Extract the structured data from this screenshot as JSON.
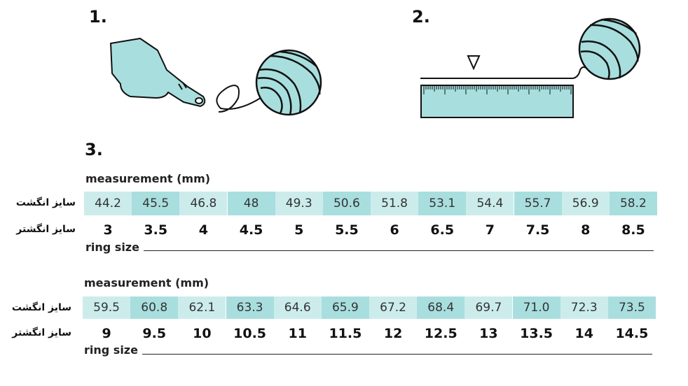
{
  "steps": [
    "1.",
    "2.",
    "3."
  ],
  "tables": [
    {
      "measurement_label": "measurement (mm)",
      "finger_label": "سایز انگشت",
      "ring_label": "سایز انگشتر",
      "measurements": [
        "44.2",
        "45.5",
        "46.8",
        "48",
        "49.3",
        "50.6",
        "51.8",
        "53.1",
        "54.4",
        "55.7",
        "56.9",
        "58.2"
      ],
      "sizes": [
        "3",
        "3.5",
        "4",
        "4.5",
        "5",
        "5.5",
        "6",
        "6.5",
        "7",
        "7.5",
        "8",
        "8.5"
      ],
      "ring_size_label": "ring size"
    },
    {
      "measurement_label": "measurement (mm)",
      "finger_label": "سایز انگشت",
      "ring_label": "سایز انگشتر",
      "measurements": [
        "59.5",
        "60.8",
        "62.1",
        "63.3",
        "64.6",
        "65.9",
        "67.2",
        "68.4",
        "69.7",
        "71.0",
        "72.3",
        "73.5"
      ],
      "sizes": [
        "9",
        "9.5",
        "10",
        "10.5",
        "11",
        "11.5",
        "12",
        "12.5",
        "13",
        "13.5",
        "14",
        "14.5"
      ],
      "ring_size_label": "ring size"
    }
  ]
}
